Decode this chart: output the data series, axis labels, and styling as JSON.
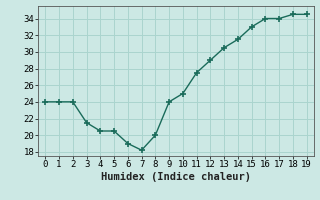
{
  "x": [
    0,
    1,
    2,
    3,
    4,
    5,
    6,
    7,
    8,
    9,
    10,
    11,
    12,
    13,
    14,
    15,
    16,
    17,
    18,
    19
  ],
  "y": [
    24,
    24,
    24,
    21.5,
    20.5,
    20.5,
    19,
    18.2,
    20,
    24,
    25,
    27.5,
    29,
    30.5,
    31.5,
    33,
    34,
    34,
    34.5,
    34.5
  ],
  "line_color": "#1a6b5a",
  "marker_color": "#1a6b5a",
  "bg_color": "#cce8e4",
  "grid_color": "#aad4ce",
  "xlabel": "Humidex (Indice chaleur)",
  "xlim": [
    -0.5,
    19.5
  ],
  "ylim": [
    17.5,
    35.5
  ],
  "yticks": [
    18,
    20,
    22,
    24,
    26,
    28,
    30,
    32,
    34
  ],
  "xticks": [
    0,
    1,
    2,
    3,
    4,
    5,
    6,
    7,
    8,
    9,
    10,
    11,
    12,
    13,
    14,
    15,
    16,
    17,
    18,
    19
  ],
  "tick_label_fontsize": 6.5,
  "xlabel_fontsize": 7.5
}
